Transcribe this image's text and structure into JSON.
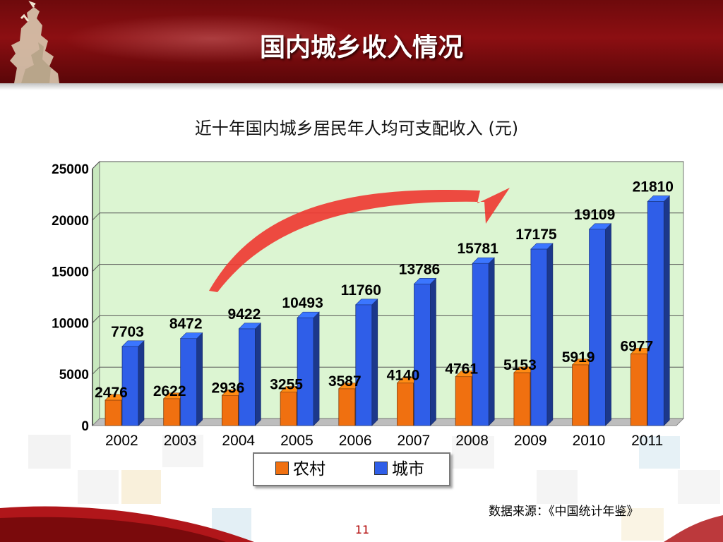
{
  "slide": {
    "title": "国内城乡收入情况",
    "source": "数据来源：《中国统计年鉴》",
    "page_number": "11"
  },
  "colors": {
    "header": "#8c0f12",
    "rural": "#f07010",
    "urban": "#2f5ee8",
    "plot_bg": "#dcf5d2",
    "arrow": "#ee3b33"
  },
  "icons": [
    "goat-statue-icon",
    "trend-arrow-icon"
  ],
  "chart_data": {
    "type": "bar",
    "title": "近十年国内城乡居民年人均可支配收入 (元)",
    "categories": [
      "2002",
      "2003",
      "2004",
      "2005",
      "2006",
      "2007",
      "2008",
      "2009",
      "2010",
      "2011"
    ],
    "series": [
      {
        "name": "农村",
        "values": [
          2476,
          2622,
          2936,
          3255,
          3587,
          4140,
          4761,
          5153,
          5919,
          6977
        ]
      },
      {
        "name": "城市",
        "values": [
          7703,
          8472,
          9422,
          10493,
          11760,
          13786,
          15781,
          17175,
          19109,
          21810
        ]
      }
    ],
    "ylim": [
      0,
      25000
    ],
    "yticks": [
      "0",
      "5000",
      "10000",
      "15000",
      "20000",
      "25000"
    ],
    "grid": true,
    "legend": "bottom",
    "style": "3d-column"
  }
}
